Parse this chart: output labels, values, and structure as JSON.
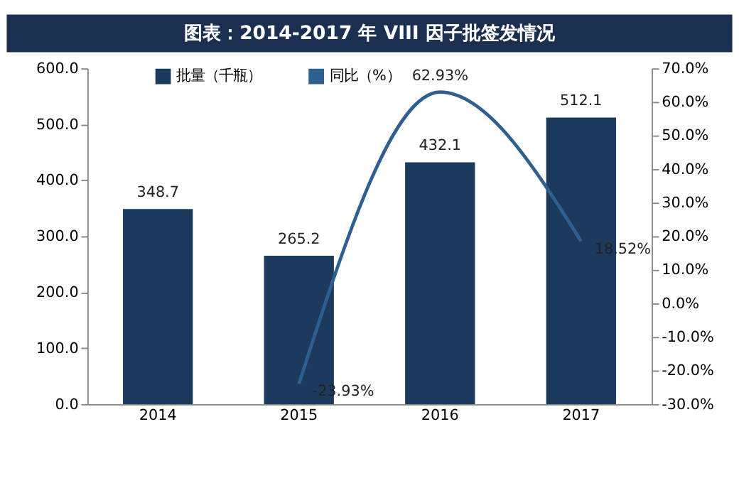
{
  "chart_data": {
    "type": "bar",
    "title": "图表：2014-2017 年 VIII 因子批签发情况",
    "categories": [
      "2014",
      "2015",
      "2016",
      "2017"
    ],
    "series": [
      {
        "name": "批量（千瓶）",
        "type": "bar",
        "color": "#1b3a5c",
        "values": [
          348.7,
          265.2,
          432.1,
          512.1
        ],
        "value_labels": [
          "348.7",
          "265.2",
          "432.1",
          "512.1"
        ]
      },
      {
        "name": "同比（%）",
        "type": "line",
        "axis": "y2",
        "color": "#2e5f8f",
        "values": [
          null,
          -23.93,
          62.93,
          18.52
        ],
        "value_labels": [
          null,
          "-23.93%",
          "62.93%",
          "18.52%"
        ]
      }
    ],
    "ylim": [
      0,
      600
    ],
    "yticks": [
      {
        "value": 0,
        "label": "0.0"
      },
      {
        "value": 100,
        "label": "100.0"
      },
      {
        "value": 200,
        "label": "200.0"
      },
      {
        "value": 300,
        "label": "300.0"
      },
      {
        "value": 400,
        "label": "400.0"
      },
      {
        "value": 500,
        "label": "500.0"
      },
      {
        "value": 600,
        "label": "600.0"
      }
    ],
    "y2lim": [
      -30,
      70
    ],
    "y2ticks": [
      {
        "value": -30,
        "label": "-30.0%"
      },
      {
        "value": -20,
        "label": "-20.0%"
      },
      {
        "value": -10,
        "label": "-10.0%"
      },
      {
        "value": 0,
        "label": "0.0%"
      },
      {
        "value": 10,
        "label": "10.0%"
      },
      {
        "value": 20,
        "label": "20.0%"
      },
      {
        "value": 30,
        "label": "30.0%"
      },
      {
        "value": 40,
        "label": "40.0%"
      },
      {
        "value": 50,
        "label": "50.0%"
      },
      {
        "value": 60,
        "label": "60.0%"
      },
      {
        "value": 70,
        "label": "70.0%"
      }
    ],
    "grid": false,
    "legend": "top"
  }
}
